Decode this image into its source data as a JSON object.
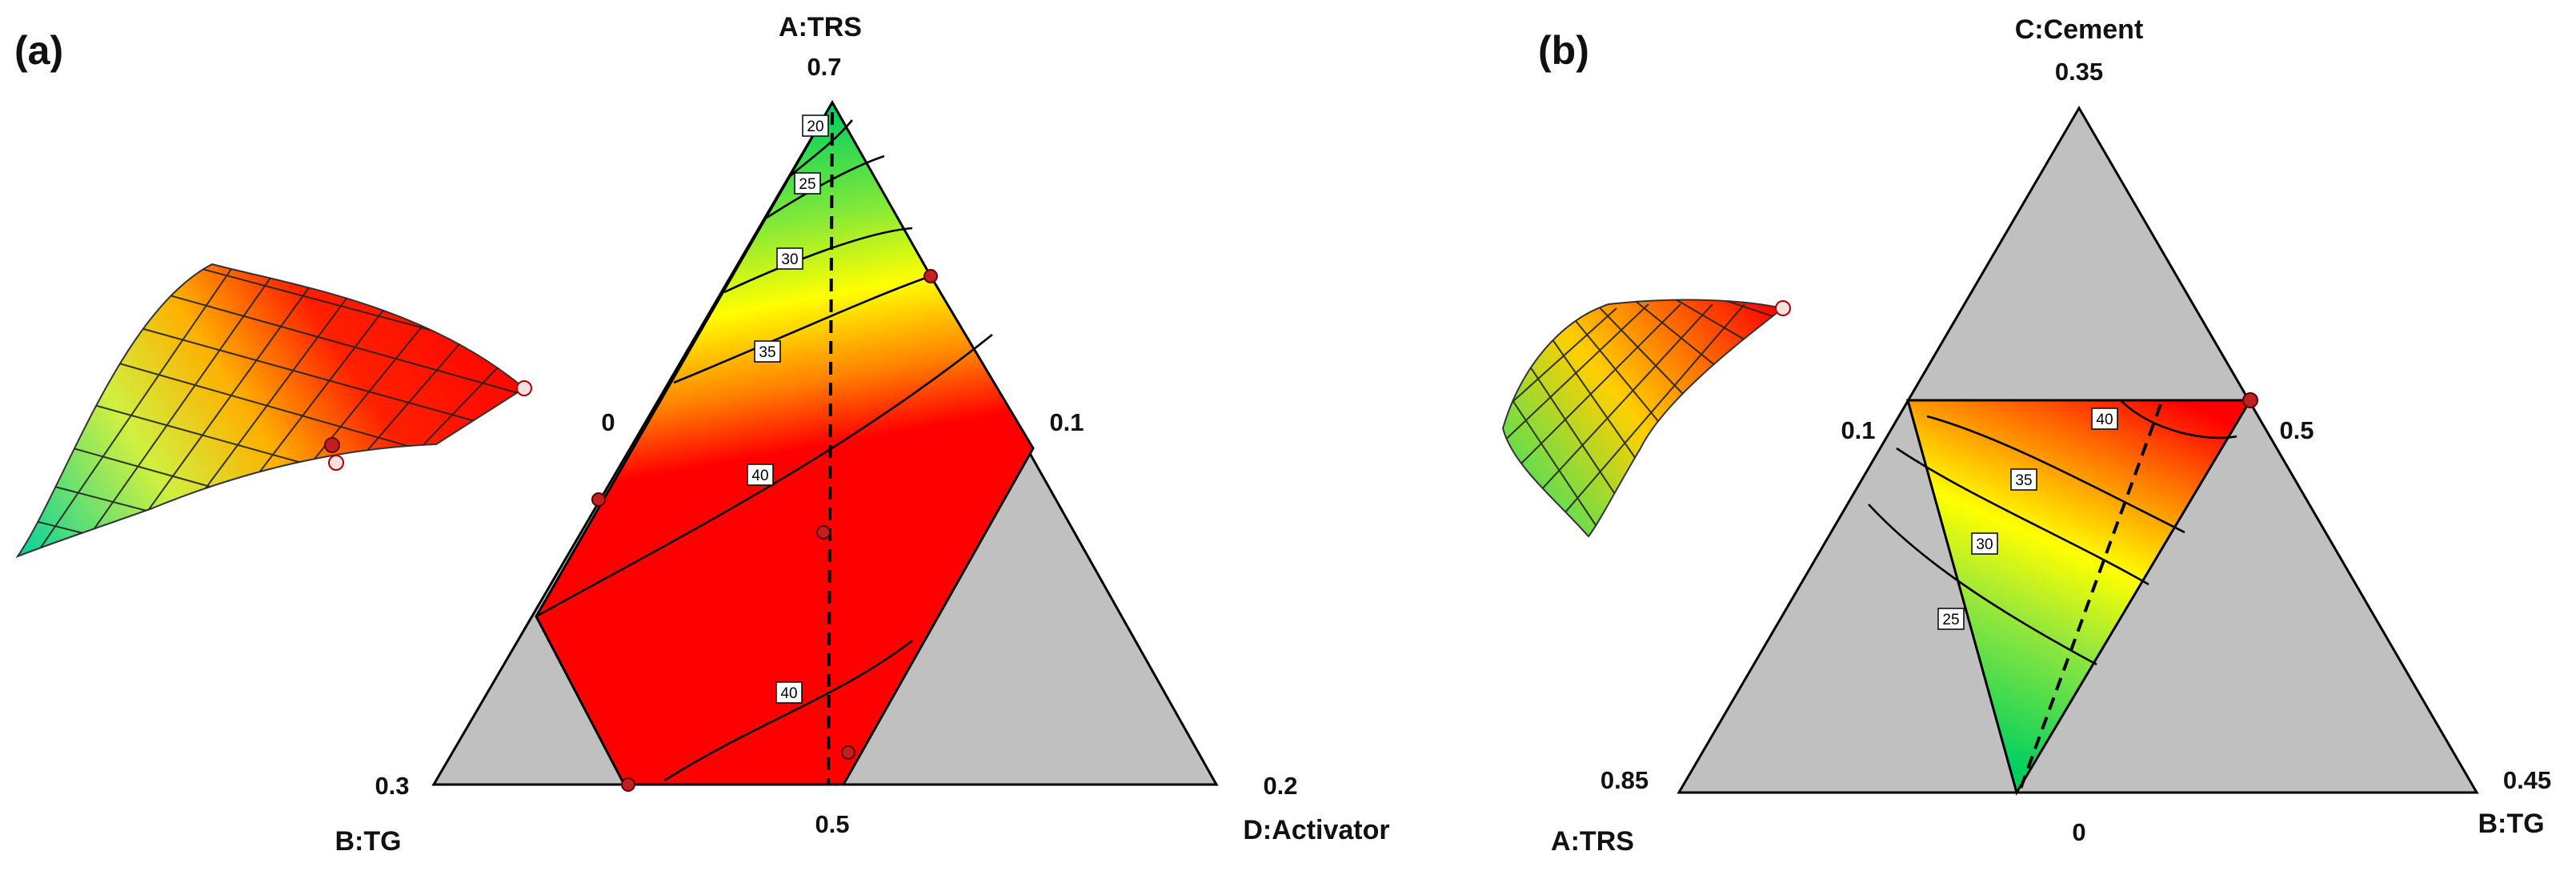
{
  "chart_data": [
    {
      "type": "ternary-contour",
      "panel": "(a)",
      "axes": {
        "top": {
          "name": "A:TRS",
          "vertex_value": "0.7"
        },
        "left": {
          "name": "B:TG",
          "vertex_value": "0.3"
        },
        "right": {
          "name": "D:Activator",
          "vertex_value": "0.2"
        }
      },
      "ticks": {
        "left_edge": "0",
        "right_edge": "0.1",
        "bottom_edge": "0.5"
      },
      "contour_levels": [
        "20",
        "25",
        "30",
        "35",
        "40",
        "40"
      ],
      "color_scale": [
        "#00d060",
        "#ffff00",
        "#ff0000"
      ],
      "region_color": "#c0c0c0"
    },
    {
      "type": "ternary-contour",
      "panel": "(b)",
      "axes": {
        "top": {
          "name": "C:Cement",
          "vertex_value": "0.35"
        },
        "left": {
          "name": "A:TRS",
          "vertex_value": "0.85"
        },
        "right": {
          "name": "B:TG",
          "vertex_value": "0.45"
        }
      },
      "ticks": {
        "left_edge": "0.1",
        "right_edge": "0.5",
        "bottom_edge": "0"
      },
      "contour_levels": [
        "40",
        "35",
        "30",
        "25"
      ],
      "color_scale": [
        "#00d060",
        "#ffff00",
        "#ff0000"
      ],
      "region_color": "#c0c0c0"
    }
  ]
}
